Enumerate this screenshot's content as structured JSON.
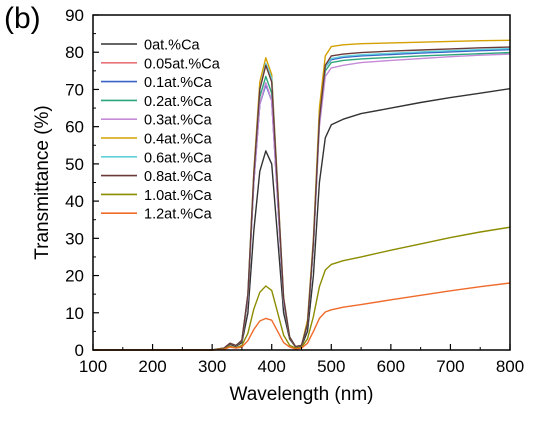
{
  "panel_label": "(b)",
  "chart_data": {
    "type": "line",
    "title": "",
    "xlabel": "Wavelength (nm)",
    "ylabel": "Transmittance (%)",
    "xlim": [
      100,
      800
    ],
    "ylim": [
      0,
      90
    ],
    "xticks": [
      100,
      200,
      300,
      400,
      500,
      600,
      700,
      800
    ],
    "yticks": [
      0,
      10,
      20,
      30,
      40,
      50,
      60,
      70,
      80,
      90
    ],
    "grid": false,
    "legend_position": "top-left",
    "series": [
      {
        "name": "0at.%Ca",
        "color": "#333333",
        "x": [
          100,
          300,
          320,
          330,
          340,
          350,
          360,
          370,
          380,
          390,
          400,
          410,
          420,
          430,
          440,
          450,
          460,
          470,
          480,
          490,
          500,
          520,
          550,
          600,
          650,
          700,
          750,
          800
        ],
        "y": [
          0,
          0,
          0.5,
          1.5,
          1,
          2,
          10,
          32,
          48,
          53.5,
          50,
          30,
          10,
          3,
          0.8,
          1,
          5,
          20,
          45,
          57,
          60.5,
          62,
          63.5,
          65,
          66.5,
          67.8,
          69,
          70.2
        ]
      },
      {
        "name": "0.05at.%Ca",
        "color": "#e8737a",
        "x": [
          100,
          300,
          320,
          330,
          340,
          350,
          360,
          370,
          380,
          390,
          400,
          410,
          420,
          430,
          440,
          450,
          460,
          470,
          480,
          490,
          500,
          520,
          550,
          600,
          650,
          700,
          750,
          800
        ],
        "y": [
          0,
          0,
          0.5,
          1.8,
          1.2,
          2.5,
          14,
          45,
          66,
          71.5,
          67,
          40,
          13,
          3.5,
          0.9,
          1.2,
          7,
          28,
          62,
          76,
          78.2,
          78.8,
          79.2,
          79.6,
          80,
          80.3,
          80.6,
          80.9
        ]
      },
      {
        "name": "0.1at.%Ca",
        "color": "#3a63c7",
        "x": [
          100,
          300,
          320,
          330,
          340,
          350,
          360,
          370,
          380,
          390,
          400,
          410,
          420,
          430,
          440,
          450,
          460,
          470,
          480,
          490,
          500,
          520,
          550,
          600,
          650,
          700,
          750,
          800
        ],
        "y": [
          0,
          0,
          0.5,
          1.8,
          1.2,
          2.5,
          14,
          45,
          66,
          71.2,
          67,
          40,
          13,
          3.5,
          0.9,
          1.2,
          7,
          28,
          62,
          76,
          78,
          78.6,
          79,
          79.4,
          79.8,
          80.1,
          80.4,
          80.7
        ]
      },
      {
        "name": "0.2at.%Ca",
        "color": "#2da67c",
        "x": [
          100,
          300,
          320,
          330,
          340,
          350,
          360,
          370,
          380,
          390,
          400,
          410,
          420,
          430,
          440,
          450,
          460,
          470,
          480,
          490,
          500,
          520,
          550,
          600,
          650,
          700,
          750,
          800
        ],
        "y": [
          0,
          0,
          0.5,
          1.8,
          1.2,
          2.5,
          14,
          46,
          68,
          73.5,
          69,
          41,
          13,
          3.5,
          0.9,
          1.2,
          7,
          28,
          61,
          75,
          77.2,
          77.8,
          78.2,
          78.6,
          79,
          79.3,
          79.6,
          79.9
        ]
      },
      {
        "name": "0.3at.%Ca",
        "color": "#c58ad8",
        "x": [
          100,
          300,
          320,
          330,
          340,
          350,
          360,
          370,
          380,
          390,
          400,
          410,
          420,
          430,
          440,
          450,
          460,
          470,
          480,
          490,
          500,
          520,
          550,
          600,
          650,
          700,
          750,
          800
        ],
        "y": [
          0,
          0,
          0.5,
          1.8,
          1.2,
          2.5,
          14,
          45,
          66,
          71.8,
          67,
          40,
          13,
          3.5,
          0.9,
          1.2,
          7,
          28,
          60,
          73.5,
          75.8,
          76.5,
          77.2,
          77.8,
          78.3,
          78.8,
          79.2,
          79.5
        ]
      },
      {
        "name": "0.4at.%Ca",
        "color": "#d4a000",
        "x": [
          100,
          300,
          320,
          330,
          340,
          350,
          360,
          370,
          380,
          390,
          400,
          410,
          420,
          430,
          440,
          450,
          460,
          470,
          480,
          490,
          500,
          520,
          550,
          600,
          650,
          700,
          750,
          800
        ],
        "y": [
          0,
          0,
          0.5,
          1.8,
          1.2,
          2.6,
          15,
          48,
          72,
          78.5,
          74,
          44,
          14,
          3.5,
          0.9,
          1.2,
          8,
          30,
          65,
          79,
          81.5,
          82,
          82.3,
          82.5,
          82.7,
          82.9,
          83.1,
          83.2
        ]
      },
      {
        "name": "0.6at.%Ca",
        "color": "#5fd0dc",
        "x": [
          100,
          300,
          320,
          330,
          340,
          350,
          360,
          370,
          380,
          390,
          400,
          410,
          420,
          430,
          440,
          450,
          460,
          470,
          480,
          490,
          500,
          520,
          550,
          600,
          650,
          700,
          750,
          800
        ],
        "y": [
          0,
          0,
          0.5,
          1.8,
          1.2,
          2.6,
          15,
          47,
          70,
          77,
          73,
          43,
          14,
          3.5,
          0.9,
          1.2,
          7,
          29,
          62,
          76,
          78.3,
          78.9,
          79.3,
          79.7,
          80.1,
          80.4,
          80.7,
          81
        ]
      },
      {
        "name": "0.8at.%Ca",
        "color": "#6a3a3a",
        "x": [
          100,
          300,
          320,
          330,
          340,
          350,
          360,
          370,
          380,
          390,
          400,
          410,
          420,
          430,
          440,
          450,
          460,
          470,
          480,
          490,
          500,
          520,
          550,
          600,
          650,
          700,
          750,
          800
        ],
        "y": [
          0,
          0,
          0.5,
          1.8,
          1.2,
          2.6,
          15,
          47,
          70,
          76.5,
          72,
          43,
          14,
          3.5,
          0.9,
          1.2,
          7,
          29,
          62,
          76.5,
          79,
          79.5,
          79.9,
          80.3,
          80.6,
          80.9,
          81.2,
          81.4
        ]
      },
      {
        "name": "1.0at.%Ca",
        "color": "#8c8c00",
        "x": [
          100,
          300,
          320,
          330,
          340,
          350,
          360,
          370,
          380,
          390,
          400,
          410,
          420,
          430,
          440,
          450,
          460,
          470,
          480,
          490,
          500,
          520,
          550,
          600,
          650,
          700,
          750,
          800
        ],
        "y": [
          0,
          0,
          0.3,
          1,
          0.6,
          1.2,
          4.5,
          11,
          15.5,
          17.2,
          16,
          10,
          4,
          1.3,
          0.5,
          0.7,
          3,
          9,
          17,
          21.5,
          23,
          24,
          25,
          26.8,
          28.5,
          30.2,
          31.7,
          33
        ]
      },
      {
        "name": "1.2at.%Ca",
        "color": "#f06a2a",
        "x": [
          100,
          300,
          320,
          330,
          340,
          350,
          360,
          370,
          380,
          390,
          400,
          410,
          420,
          430,
          440,
          450,
          460,
          470,
          480,
          490,
          500,
          520,
          550,
          600,
          650,
          700,
          750,
          800
        ],
        "y": [
          0,
          0,
          0.2,
          0.8,
          0.5,
          0.8,
          2.5,
          5.5,
          7.8,
          8.5,
          8,
          5,
          2,
          0.8,
          0.3,
          0.5,
          1.8,
          5,
          8.5,
          10.2,
          10.8,
          11.5,
          12.2,
          13.5,
          14.7,
          15.9,
          17,
          18
        ]
      }
    ]
  }
}
